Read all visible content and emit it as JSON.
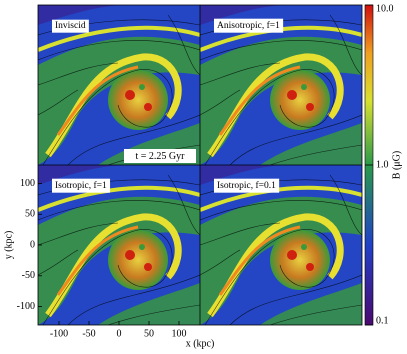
{
  "figure": {
    "panels": [
      {
        "label": "Inviscid"
      },
      {
        "label": "Anisotropic, f=1"
      },
      {
        "label": "Isotropic, f=1"
      },
      {
        "label": "Isotropic, f=0.1"
      }
    ],
    "annotation": "t = 2.25 Gyr",
    "xlabel": "x (kpc)",
    "ylabel": "y (kpc)",
    "xlim": [
      -135,
      135
    ],
    "ylim": [
      -130,
      130
    ],
    "xticks": [
      -100,
      -50,
      0,
      50,
      100
    ],
    "yticks": [
      -100,
      -50,
      0,
      50,
      100
    ],
    "colorbar": {
      "label": "B (μG)",
      "scale": "log",
      "lim": [
        0.1,
        10
      ],
      "ticks": [
        0.1,
        {
          "value": 1,
          "label": "1.0"
        },
        {
          "value": 10,
          "label": "10.0"
        }
      ]
    }
  }
}
